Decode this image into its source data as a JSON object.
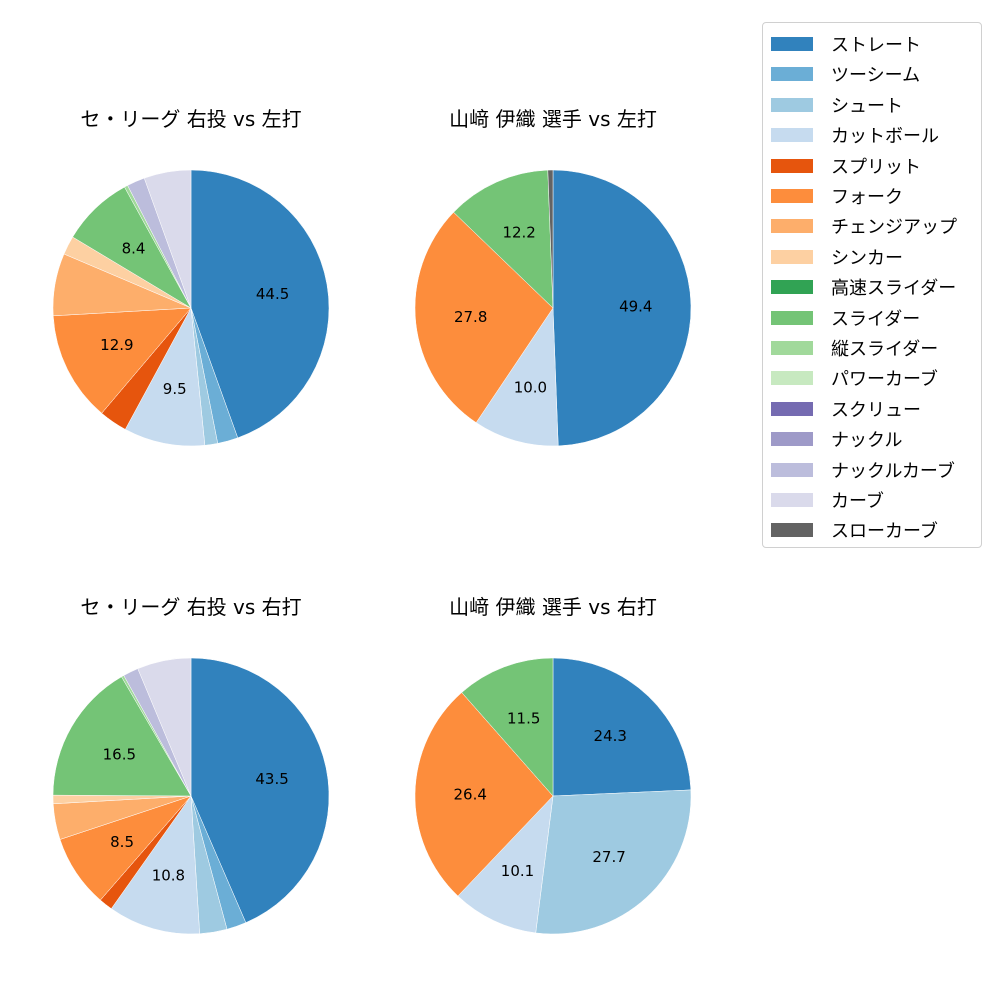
{
  "legend": {
    "items": [
      {
        "label": "ストレート",
        "color": "#3182bd"
      },
      {
        "label": "ツーシーム",
        "color": "#6baed6"
      },
      {
        "label": "シュート",
        "color": "#9ecae1"
      },
      {
        "label": "カットボール",
        "color": "#c6dbef"
      },
      {
        "label": "スプリット",
        "color": "#e6550d"
      },
      {
        "label": "フォーク",
        "color": "#fd8d3c"
      },
      {
        "label": "チェンジアップ",
        "color": "#fdae6b"
      },
      {
        "label": "シンカー",
        "color": "#fdd0a2"
      },
      {
        "label": "高速スライダー",
        "color": "#31a354"
      },
      {
        "label": "スライダー",
        "color": "#74c476"
      },
      {
        "label": "縦スライダー",
        "color": "#a1d99b"
      },
      {
        "label": "パワーカーブ",
        "color": "#c7e9c0"
      },
      {
        "label": "スクリュー",
        "color": "#756bb1"
      },
      {
        "label": "ナックル",
        "color": "#9e9ac8"
      },
      {
        "label": "ナックルカーブ",
        "color": "#bcbddc"
      },
      {
        "label": "カーブ",
        "color": "#dadaeb"
      },
      {
        "label": "スローカーブ",
        "color": "#636363"
      }
    ]
  },
  "chart_data": [
    {
      "type": "pie",
      "title": "セ・リーグ 右投 vs 左打",
      "labels": [
        "ストレート",
        "ツーシーム",
        "シュート",
        "カットボール",
        "スプリット",
        "フォーク",
        "チェンジアップ",
        "シンカー",
        "スライダー",
        "縦スライダー",
        "ナックルカーブ",
        "カーブ"
      ],
      "values": [
        44.5,
        2.4,
        1.5,
        9.5,
        3.3,
        12.9,
        7.3,
        2.2,
        8.4,
        0.4,
        2.1,
        5.5
      ],
      "colors": [
        "#3182bd",
        "#6baed6",
        "#9ecae1",
        "#c6dbef",
        "#e6550d",
        "#fd8d3c",
        "#fdae6b",
        "#fdd0a2",
        "#74c476",
        "#a1d99b",
        "#bcbddc",
        "#dadaeb"
      ],
      "shown_labels": [
        "44.5",
        "",
        "",
        "9.5",
        "",
        "12.9",
        "",
        "",
        "8.4",
        "",
        "",
        ""
      ]
    },
    {
      "type": "pie",
      "title": "山﨑 伊織 選手 vs 左打",
      "labels": [
        "ストレート",
        "カットボール",
        "フォーク",
        "スライダー",
        "スローカーブ"
      ],
      "values": [
        49.4,
        10.0,
        27.8,
        12.2,
        0.6
      ],
      "colors": [
        "#3182bd",
        "#c6dbef",
        "#fd8d3c",
        "#74c476",
        "#636363"
      ],
      "shown_labels": [
        "49.4",
        "10.0",
        "27.8",
        "12.2",
        ""
      ]
    },
    {
      "type": "pie",
      "title": "セ・リーグ 右投 vs 右打",
      "labels": [
        "ストレート",
        "ツーシーム",
        "シュート",
        "カットボール",
        "スプリット",
        "フォーク",
        "チェンジアップ",
        "シンカー",
        "スライダー",
        "縦スライダー",
        "ナックルカーブ",
        "カーブ"
      ],
      "values": [
        43.5,
        2.3,
        3.2,
        10.8,
        1.6,
        8.5,
        4.2,
        1.0,
        16.5,
        0.3,
        1.8,
        6.3
      ],
      "colors": [
        "#3182bd",
        "#6baed6",
        "#9ecae1",
        "#c6dbef",
        "#e6550d",
        "#fd8d3c",
        "#fdae6b",
        "#fdd0a2",
        "#74c476",
        "#a1d99b",
        "#bcbddc",
        "#dadaeb"
      ],
      "shown_labels": [
        "43.5",
        "",
        "",
        "10.8",
        "",
        "8.5",
        "",
        "",
        "16.5",
        "",
        "",
        ""
      ]
    },
    {
      "type": "pie",
      "title": "山﨑 伊織 選手 vs 右打",
      "labels": [
        "ストレート",
        "シュート",
        "カットボール",
        "フォーク",
        "スライダー"
      ],
      "values": [
        24.3,
        27.7,
        10.1,
        26.4,
        11.5
      ],
      "colors": [
        "#3182bd",
        "#9ecae1",
        "#c6dbef",
        "#fd8d3c",
        "#74c476"
      ],
      "shown_labels": [
        "24.3",
        "27.7",
        "10.1",
        "26.4",
        "11.5"
      ]
    }
  ],
  "titles": {
    "top_left": "セ・リーグ 右投 vs 左打",
    "top_right": "山﨑 伊織 選手 vs 左打",
    "bottom_left": "セ・リーグ 右投 vs 右打",
    "bottom_right": "山﨑 伊織 選手 vs 右打"
  }
}
